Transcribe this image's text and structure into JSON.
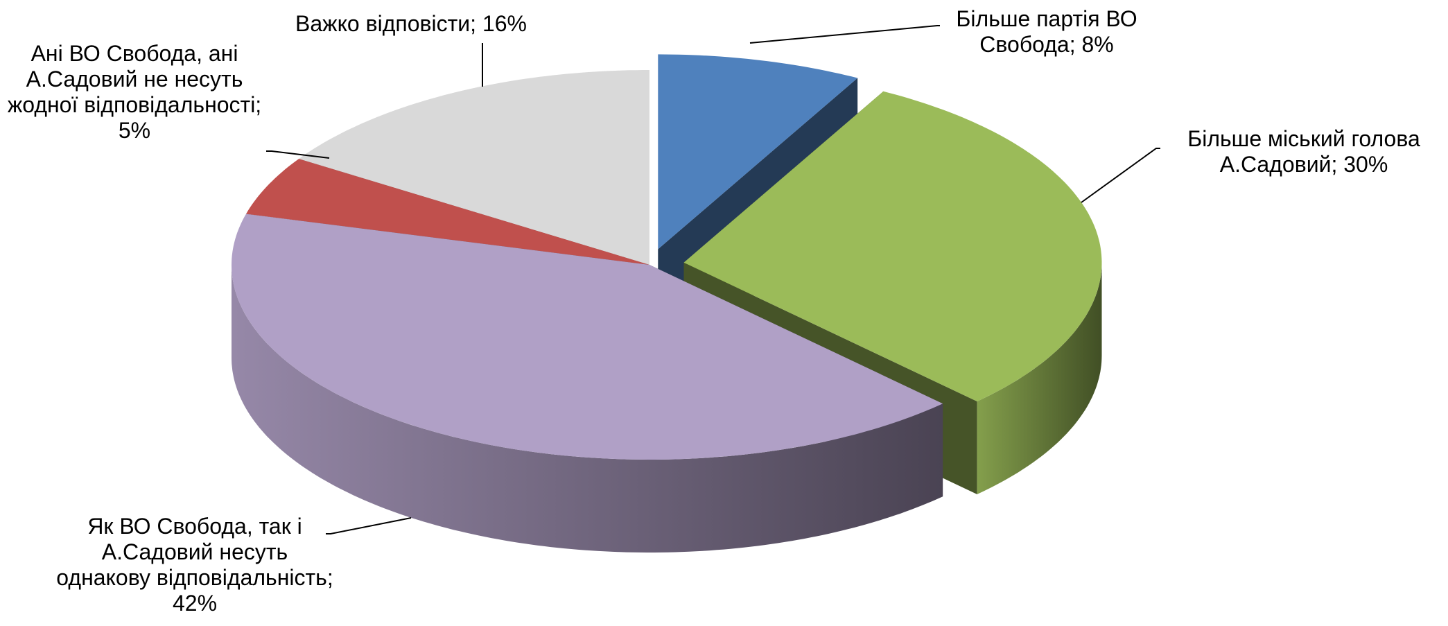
{
  "chart_data": {
    "type": "pie3d",
    "labels": [
      "Більше партія ВО Свобода; 8%",
      "Більше міський голова А.Садовий; 30%",
      "Як ВО Свобода, так і А.Садовий несуть однакову відповідальність; 42%",
      "Ані ВО Свобода, ані А.Садовий не несуть жодної відповідальності; 5%",
      "Важко відповісти; 16%"
    ],
    "values": [
      8,
      30,
      42,
      5,
      16
    ],
    "colors": [
      "#4f81bd",
      "#9bbb59",
      "#b0a0c6",
      "#c0504d",
      "#d9d9d9"
    ],
    "exploded": [
      true,
      true,
      false,
      false,
      false
    ]
  }
}
